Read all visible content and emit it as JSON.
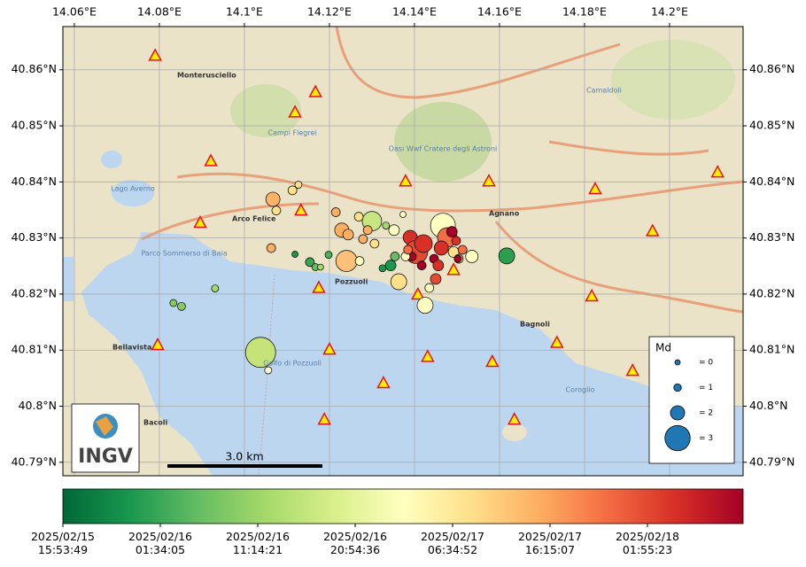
{
  "chart_data": {
    "type": "scatter",
    "xlim": [
      14.0573,
      14.2173
    ],
    "ylim": [
      40.7876,
      40.8677
    ],
    "xticks": [
      {
        "value": 14.06,
        "label": "14.06°E"
      },
      {
        "value": 14.08,
        "label": "14.08°E"
      },
      {
        "value": 14.1,
        "label": "14.1°E"
      },
      {
        "value": 14.12,
        "label": "14.12°E"
      },
      {
        "value": 14.14,
        "label": "14.14°E"
      },
      {
        "value": 14.16,
        "label": "14.16°E"
      },
      {
        "value": 14.18,
        "label": "14.18°E"
      },
      {
        "value": 14.2,
        "label": "14.2°E"
      }
    ],
    "yticks": [
      {
        "value": 40.79,
        "label": "40.79°N"
      },
      {
        "value": 40.8,
        "label": "40.8°N"
      },
      {
        "value": 40.81,
        "label": "40.81°N"
      },
      {
        "value": 40.82,
        "label": "40.82°N"
      },
      {
        "value": 40.83,
        "label": "40.83°N"
      },
      {
        "value": 40.84,
        "label": "40.84°N"
      },
      {
        "value": 40.85,
        "label": "40.85°N"
      },
      {
        "value": 40.86,
        "label": "40.86°N"
      }
    ],
    "grid": true,
    "series": [
      {
        "x": [
          14.1038,
          14.1056,
          14.0852,
          14.0833,
          14.0931,
          14.1063,
          14.1067,
          14.1075,
          14.1113,
          14.1127,
          14.1119,
          14.1154,
          14.1167,
          14.1179,
          14.1198,
          14.1215,
          14.124,
          14.1229,
          14.1244,
          14.1271,
          14.1279,
          14.13,
          14.1269,
          14.129,
          14.1306,
          14.1333,
          14.1352,
          14.1344,
          14.1325,
          14.1354,
          14.1363,
          14.1373,
          14.139,
          14.1404,
          14.1421,
          14.1425,
          14.1435,
          14.1446,
          14.145,
          14.1456,
          14.1467,
          14.1477,
          14.1463,
          14.1488,
          14.1498,
          14.1492,
          14.1504,
          14.1513,
          14.1535,
          14.1502,
          14.1394,
          14.1417,
          14.1617,
          14.1379,
          14.1385
        ],
        "values": [
          40.8096,
          40.8064,
          40.8178,
          40.8184,
          40.821,
          40.8282,
          40.8369,
          40.8349,
          40.8385,
          40.8395,
          40.8271,
          40.8257,
          40.8248,
          40.8248,
          40.827,
          40.8346,
          40.8259,
          40.8314,
          40.8306,
          40.8259,
          40.8298,
          40.833,
          40.8338,
          40.8314,
          40.829,
          40.8322,
          40.8314,
          40.8251,
          40.8246,
          40.8267,
          40.8222,
          40.8342,
          40.8301,
          40.8275,
          40.829,
          40.818,
          40.8211,
          40.8263,
          40.8227,
          40.8251,
          40.8322,
          40.8301,
          40.8282,
          40.8311,
          40.8295,
          40.8275,
          40.8263,
          40.8279,
          40.8267,
          40.8263,
          40.8267,
          40.8251,
          40.8268,
          40.8267,
          40.8279
        ],
        "sizes": [
          3.35,
          0.9,
          1.1,
          0.9,
          0.9,
          1.26,
          2.0,
          1.26,
          1.26,
          0.9,
          0.63,
          1.26,
          0.9,
          0.63,
          0.9,
          1.26,
          2.68,
          2.0,
          1.55,
          1.26,
          1.26,
          2.53,
          1.26,
          1.26,
          1.26,
          0.9,
          1.55,
          1.55,
          0.9,
          1.26,
          2.19,
          0.63,
          2.0,
          2.83,
          2.37,
          2.19,
          1.26,
          1.26,
          1.55,
          1.55,
          2.97,
          2.53,
          2.0,
          1.55,
          1.26,
          1.55,
          1.26,
          1.26,
          1.79,
          0.9,
          1.26,
          1.26,
          2.19,
          1.26,
          1.26
        ],
        "colors": [
          "#c5e378",
          "#ffffcc",
          "#86cb66",
          "#86cb66",
          "#a6d96a",
          "#fdae61",
          "#fdb365",
          "#fee08b",
          "#fee08b",
          "#fee08b",
          "#1a9850",
          "#3aa655",
          "#66bd63",
          "#a6d96a",
          "#4bb05c",
          "#fdae61",
          "#fdc07a",
          "#fdae61",
          "#fdae61",
          "#ffffbf",
          "#fdae61",
          "#c8e680",
          "#fee08b",
          "#fdae61",
          "#fee08b",
          "#a6d96a",
          "#ffffbf",
          "#1a9850",
          "#1a9850",
          "#66bd63",
          "#fee08b",
          "#ffffbf",
          "#d73027",
          "#e34a33",
          "#d73027",
          "#ffffbf",
          "#ffffbf",
          "#a50026",
          "#e34a33",
          "#d73027",
          "#ffffbf",
          "#f46d43",
          "#d73027",
          "#a50026",
          "#d73027",
          "#fee08b",
          "#fdae61",
          "#f46d43",
          "#ffffbf",
          "#a50026",
          "#a50026",
          "#a50026",
          "#2d9e4f",
          "#ffffbf",
          "#f46d43"
        ]
      }
    ],
    "stations": {
      "color": "#ffee00",
      "edge_color": "#e8101a",
      "x": [
        14.079,
        14.0921,
        14.0896,
        14.1119,
        14.1167,
        14.1133,
        14.1175,
        14.12,
        14.1188,
        14.1327,
        14.1379,
        14.1408,
        14.1431,
        14.1492,
        14.1575,
        14.1583,
        14.1635,
        14.1735,
        14.1817,
        14.1825,
        14.1913,
        14.196,
        14.2113,
        14.0796
      ],
      "y": [
        40.8625,
        40.8437,
        40.8327,
        40.8524,
        40.856,
        40.8349,
        40.8211,
        40.8101,
        40.7976,
        40.8041,
        40.8401,
        40.8199,
        40.8088,
        40.8243,
        40.8401,
        40.8079,
        40.7976,
        40.8113,
        40.8196,
        40.8387,
        40.8063,
        40.8312,
        40.8417,
        40.8109
      ]
    },
    "legend": {
      "title": "Md",
      "sizes": [
        {
          "value": 0,
          "label": "= 0"
        },
        {
          "value": 1,
          "label": "= 1"
        },
        {
          "value": 2,
          "label": "= 2"
        },
        {
          "value": 3,
          "label": "= 3"
        }
      ],
      "color": "#1f77b4"
    },
    "colorbar": {
      "colormap": [
        "#006837",
        "#1a9850",
        "#66bd63",
        "#a6d96a",
        "#d9ef8b",
        "#ffffbf",
        "#fee08b",
        "#fdae61",
        "#f46d43",
        "#d73027",
        "#a50026"
      ],
      "clim": [
        "2025/02/15 15:53:49",
        "2025/02/18 11:25:00"
      ],
      "ticks": [
        "2025/02/15\n15:53:49",
        "2025/02/16\n01:34:05",
        "2025/02/16\n11:14:21",
        "2025/02/16\n20:54:36",
        "2025/02/17\n06:34:52",
        "2025/02/17\n16:15:07",
        "2025/02/18\n01:55:23"
      ]
    },
    "scale_bar": "3.0 km",
    "logo": "INGV",
    "place_names": [
      "Monterusciello",
      "Arco Felice",
      "Pozzuoli",
      "Agnano",
      "Bagnoli",
      "Bellavista",
      "Bacoli",
      "Lago Averno",
      "Golfo di Pozzuoli",
      "Parco Sommerso di Baia",
      "Oasi Wwf Cratere degli Astroni",
      "Campi Flegrei",
      "Camaldoli",
      "Coroglio"
    ]
  }
}
